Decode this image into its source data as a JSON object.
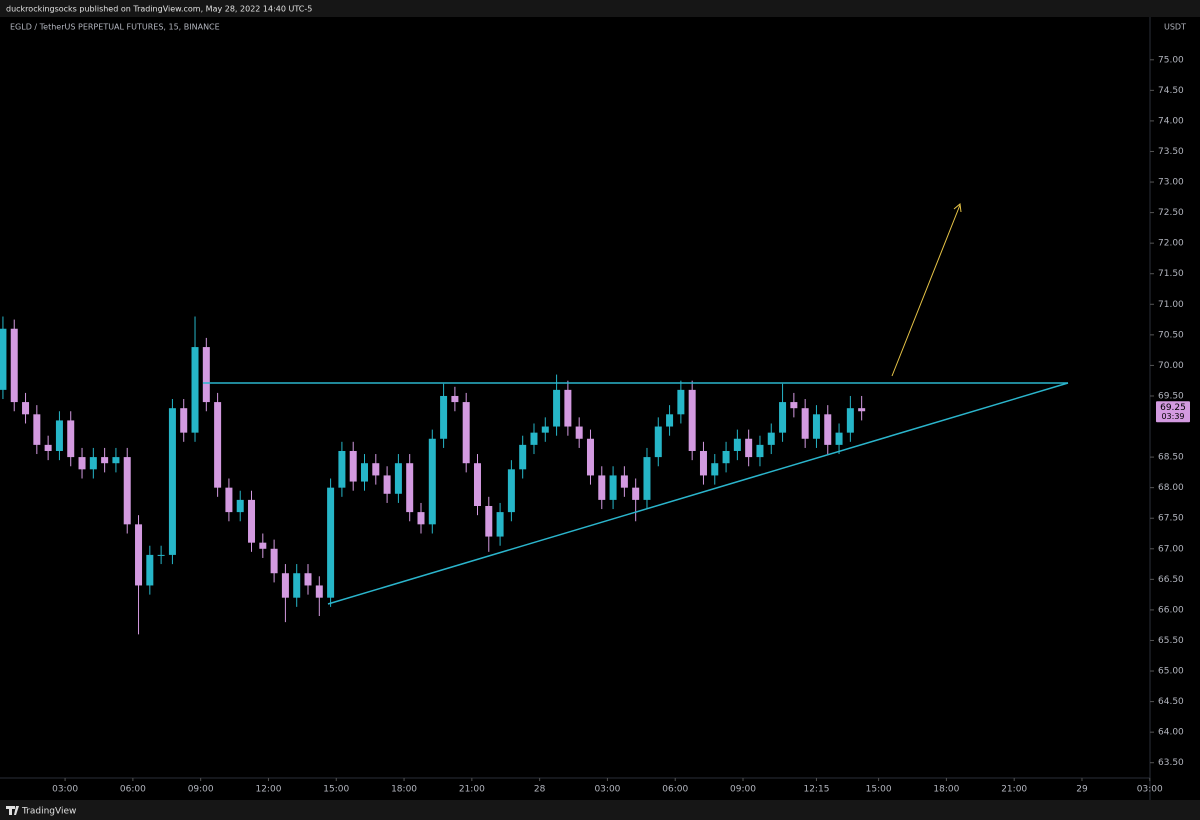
{
  "header": {
    "publisher": "duckrockingsocks published on TradingView.com, May 28, 2022 14:40 UTC-5",
    "brand": "TradingView"
  },
  "chart_data": {
    "type": "candlestick",
    "title": "EGLD / TetherUS PERPETUAL FUTURES, 15, BINANCE",
    "y_axis_label": "USDT",
    "up_color": "#26b6c8",
    "down_color": "#d39ae0",
    "x": [
      0.25,
      0.75,
      1.25,
      1.75,
      2.25,
      2.75,
      3.25,
      3.75,
      4.25,
      4.75,
      5.25,
      5.75,
      6.25,
      6.75,
      7.25,
      7.75,
      8.25,
      8.75,
      9.25,
      9.75,
      10.25,
      10.75,
      11.25,
      11.75,
      12.25,
      12.75,
      13.25,
      13.75,
      14.25,
      14.75,
      15.25,
      15.75,
      16.25,
      16.75,
      17.25,
      17.75,
      18.25,
      18.75,
      19.25,
      19.75,
      20.25,
      20.75,
      21.25,
      21.75,
      22.25,
      22.75,
      23.25,
      23.75,
      24.25,
      24.75,
      25.25,
      25.75,
      26.25,
      26.75,
      27.25,
      27.75,
      28.25,
      28.75,
      29.25,
      29.75,
      30.25,
      30.75,
      31.25,
      31.75,
      32.25,
      32.75,
      33.25,
      33.75,
      34.25,
      34.75,
      35.25,
      35.75,
      36.25,
      36.75,
      37.25,
      37.75,
      38.25
    ],
    "open": [
      69.6,
      70.6,
      69.4,
      69.2,
      68.7,
      68.6,
      69.1,
      68.5,
      68.3,
      68.5,
      68.4,
      68.5,
      67.4,
      66.4,
      66.9,
      66.9,
      69.3,
      68.9,
      70.3,
      69.4,
      68.0,
      67.6,
      67.8,
      67.1,
      67.0,
      66.6,
      66.2,
      66.6,
      66.4,
      66.2,
      68.0,
      68.6,
      68.1,
      68.4,
      68.2,
      67.9,
      68.4,
      67.6,
      67.4,
      68.8,
      69.5,
      69.4,
      68.4,
      67.7,
      67.2,
      67.6,
      68.3,
      68.7,
      68.9,
      69.0,
      69.6,
      69.0,
      68.8,
      68.2,
      67.8,
      68.2,
      68.0,
      67.8,
      68.5,
      69.0,
      69.2,
      69.6,
      68.6,
      68.2,
      68.4,
      68.6,
      68.8,
      68.5,
      68.7,
      68.9,
      69.4,
      69.3,
      68.8,
      69.2,
      68.7,
      68.9,
      69.3
    ],
    "high": [
      70.8,
      70.75,
      69.55,
      69.35,
      68.85,
      69.25,
      69.25,
      68.65,
      68.65,
      68.65,
      68.65,
      68.65,
      67.55,
      67.05,
      67.05,
      69.45,
      69.45,
      70.8,
      70.45,
      69.55,
      68.15,
      67.95,
      67.95,
      67.25,
      67.15,
      66.75,
      66.75,
      66.75,
      66.55,
      68.15,
      68.75,
      68.75,
      68.55,
      68.55,
      68.35,
      68.55,
      68.55,
      67.75,
      68.95,
      69.7,
      69.65,
      69.55,
      68.55,
      67.85,
      67.75,
      68.45,
      68.85,
      69.05,
      69.15,
      69.85,
      69.75,
      69.15,
      68.95,
      68.35,
      68.35,
      68.35,
      68.15,
      68.65,
      69.15,
      69.35,
      69.75,
      69.75,
      68.75,
      68.55,
      68.75,
      68.95,
      68.95,
      68.85,
      69.05,
      69.7,
      69.55,
      69.45,
      69.35,
      69.35,
      69.05,
      69.5,
      69.5
    ],
    "low": [
      69.45,
      69.25,
      69.05,
      68.55,
      68.45,
      68.45,
      68.35,
      68.15,
      68.15,
      68.25,
      68.25,
      67.25,
      65.6,
      66.25,
      66.75,
      66.75,
      68.75,
      68.75,
      69.25,
      67.85,
      67.45,
      67.45,
      66.95,
      66.85,
      66.45,
      65.8,
      66.05,
      66.25,
      65.9,
      66.05,
      67.85,
      67.95,
      67.95,
      68.05,
      67.75,
      67.75,
      67.45,
      67.25,
      67.25,
      68.65,
      69.25,
      68.25,
      67.55,
      66.95,
      67.05,
      67.45,
      68.15,
      68.55,
      68.75,
      68.85,
      68.85,
      68.65,
      68.05,
      67.65,
      67.65,
      67.85,
      67.45,
      67.65,
      68.35,
      68.85,
      69.05,
      68.45,
      68.05,
      68.05,
      68.25,
      68.45,
      68.35,
      68.35,
      68.55,
      68.75,
      69.15,
      68.65,
      68.65,
      68.55,
      68.55,
      68.75,
      69.1
    ],
    "close": [
      70.6,
      69.4,
      69.2,
      68.7,
      68.6,
      69.1,
      68.5,
      68.3,
      68.5,
      68.4,
      68.5,
      67.4,
      66.4,
      66.9,
      66.9,
      69.3,
      68.9,
      70.3,
      69.4,
      68.0,
      67.6,
      67.8,
      67.1,
      67.0,
      66.6,
      66.2,
      66.6,
      66.4,
      66.2,
      68.0,
      68.6,
      68.1,
      68.4,
      68.2,
      67.9,
      68.4,
      67.6,
      67.4,
      68.8,
      69.5,
      69.4,
      68.4,
      67.7,
      67.2,
      67.6,
      68.3,
      68.7,
      68.9,
      69.0,
      69.6,
      69.0,
      68.8,
      68.2,
      67.8,
      68.2,
      68.0,
      67.8,
      68.5,
      69.0,
      69.2,
      69.6,
      68.6,
      68.2,
      68.4,
      68.6,
      68.8,
      68.5,
      68.7,
      68.9,
      69.4,
      69.3,
      68.8,
      69.2,
      68.7,
      68.9,
      69.3,
      69.25
    ],
    "price_tag": {
      "value": 69.25,
      "label": "69.25",
      "timer": "03:39"
    },
    "xlim": [
      0.12,
      51.01
    ],
    "xticks": [
      {
        "value": 3,
        "label": "03:00"
      },
      {
        "value": 6,
        "label": "06:00"
      },
      {
        "value": 9,
        "label": "09:00"
      },
      {
        "value": 12,
        "label": "12:00"
      },
      {
        "value": 15,
        "label": "15:00"
      },
      {
        "value": 18,
        "label": "18:00"
      },
      {
        "value": 21,
        "label": "21:00"
      },
      {
        "value": 24,
        "label": "28"
      },
      {
        "value": 27,
        "label": "03:00"
      },
      {
        "value": 30,
        "label": "06:00"
      },
      {
        "value": 33,
        "label": "09:00"
      },
      {
        "value": 36.25,
        "label": "12:15"
      },
      {
        "value": 39,
        "label": "15:00"
      },
      {
        "value": 42,
        "label": "18:00"
      },
      {
        "value": 45,
        "label": "21:00"
      },
      {
        "value": 48,
        "label": "29"
      },
      {
        "value": 51,
        "label": "03:00"
      }
    ],
    "ylim": [
      63.25,
      75.7
    ],
    "yticks": [
      {
        "value": 63.5,
        "label": "63.50"
      },
      {
        "value": 64,
        "label": "64.00"
      },
      {
        "value": 64.5,
        "label": "64.50"
      },
      {
        "value": 65,
        "label": "65.00"
      },
      {
        "value": 65.5,
        "label": "65.50"
      },
      {
        "value": 66,
        "label": "66.00"
      },
      {
        "value": 66.5,
        "label": "66.50"
      },
      {
        "value": 67,
        "label": "67.00"
      },
      {
        "value": 67.5,
        "label": "67.50"
      },
      {
        "value": 68,
        "label": "68.00"
      },
      {
        "value": 68.5,
        "label": "68.50"
      },
      {
        "value": 69.5,
        "label": "69.50"
      },
      {
        "value": 70,
        "label": "70.00"
      },
      {
        "value": 70.5,
        "label": "70.50"
      },
      {
        "value": 71,
        "label": "71.00"
      },
      {
        "value": 71.5,
        "label": "71.50"
      },
      {
        "value": 72,
        "label": "72.00"
      },
      {
        "value": 72.5,
        "label": "72.50"
      },
      {
        "value": 73,
        "label": "73.00"
      },
      {
        "value": 73.5,
        "label": "73.50"
      },
      {
        "value": 74,
        "label": "74.00"
      },
      {
        "value": 74.5,
        "label": "74.50"
      },
      {
        "value": 75,
        "label": "75.00"
      }
    ]
  }
}
